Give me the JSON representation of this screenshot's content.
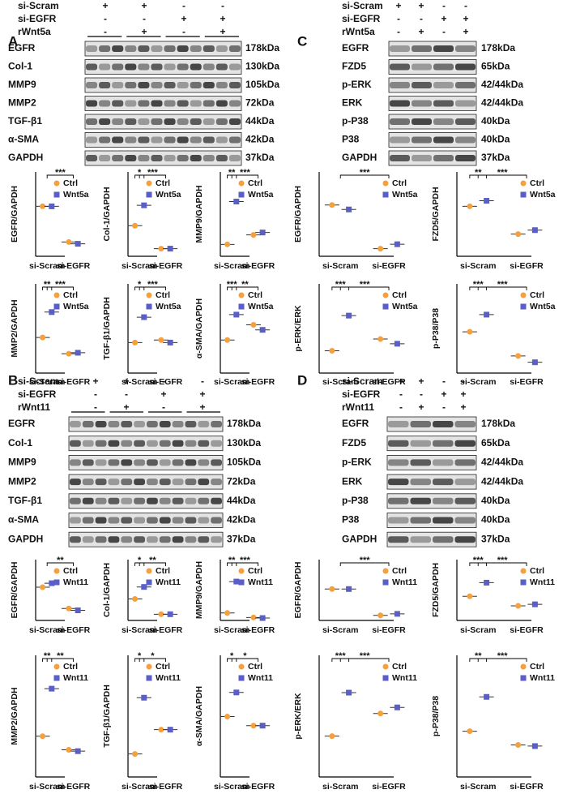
{
  "panels": [
    {
      "label": "A",
      "conditions": [
        {
          "name": "si-Scram",
          "signs": [
            "+",
            "+",
            "-",
            "-"
          ]
        },
        {
          "name": "si-EGFR",
          "signs": [
            "-",
            "-",
            "+",
            "+"
          ]
        },
        {
          "name": "rWnt5a",
          "signs": [
            "-",
            "+",
            "-",
            "+"
          ]
        }
      ],
      "blots": [
        {
          "protein": "EGFR",
          "size": "178kDa"
        },
        {
          "protein": "Col-1",
          "size": "130kDa"
        },
        {
          "protein": "MMP9",
          "size": "105kDa"
        },
        {
          "protein": "MMP2",
          "size": "72kDa"
        },
        {
          "protein": "TGF-β1",
          "size": "44kDa"
        },
        {
          "protein": "α-SMA",
          "size": "42kDa"
        },
        {
          "protein": "GAPDH",
          "size": "37kDa"
        }
      ],
      "plots": [
        {
          "ylabel": "EGFR/GAPDH",
          "categories": [
            "si-Scram",
            "si-EGFR"
          ],
          "ylim": [
            0,
            2
          ],
          "significance": [
            "***"
          ],
          "series": [
            {
              "name": "Ctrl",
              "color": "#f5a03c",
              "values": [
                1.4,
                0.4
              ]
            },
            {
              "name": "Wnt5a",
              "color": "#5a5fc8",
              "values": [
                1.4,
                0.35
              ]
            }
          ]
        },
        {
          "ylabel": "Col-1/GAPDH",
          "categories": [
            "si-Scram",
            "si-EGFR"
          ],
          "ylim": [
            0,
            1.4
          ],
          "significance": [
            "*",
            "***"
          ],
          "series": [
            {
              "name": "Ctrl",
              "color": "#f5a03c",
              "values": [
                0.6,
                0.15
              ]
            },
            {
              "name": "Wnt5a",
              "color": "#5a5fc8",
              "values": [
                1.0,
                0.15
              ]
            }
          ]
        },
        {
          "ylabel": "MMP9/GAPDH",
          "categories": [
            "si-Scram",
            "si-EGFR"
          ],
          "ylim": [
            0,
            1.5
          ],
          "significance": [
            "**",
            "***"
          ],
          "series": [
            {
              "name": "Ctrl",
              "color": "#f5a03c",
              "values": [
                0.25,
                0.45
              ]
            },
            {
              "name": "Wnt5a",
              "color": "#5a5fc8",
              "values": [
                1.15,
                0.5
              ]
            }
          ]
        },
        {
          "ylabel": "MMP2/GAPDH",
          "categories": [
            "si-Scram",
            "si-EGFR"
          ],
          "ylim": [
            0,
            1.5
          ],
          "significance": [
            "**",
            "***"
          ],
          "series": [
            {
              "name": "Ctrl",
              "color": "#f5a03c",
              "values": [
                0.7,
                0.38
              ]
            },
            {
              "name": "Wnt5a",
              "color": "#5a5fc8",
              "values": [
                1.2,
                0.4
              ]
            }
          ]
        },
        {
          "ylabel": "TGF-β1/GAPDH",
          "categories": [
            "si-Scram",
            "si-EGFR"
          ],
          "ylim": [
            0,
            1.5
          ],
          "significance": [
            "*",
            "***"
          ],
          "series": [
            {
              "name": "Ctrl",
              "color": "#f5a03c",
              "values": [
                0.6,
                0.65
              ]
            },
            {
              "name": "Wnt5a",
              "color": "#5a5fc8",
              "values": [
                1.1,
                0.6
              ]
            }
          ]
        },
        {
          "ylabel": "α-SMA/GAPDH",
          "categories": [
            "si-Scram",
            "si-EGFR"
          ],
          "ylim": [
            0,
            1.5
          ],
          "significance": [
            "***",
            "**"
          ],
          "series": [
            {
              "name": "Ctrl",
              "color": "#f5a03c",
              "values": [
                0.65,
                0.95
              ]
            },
            {
              "name": "Wnt5a",
              "color": "#5a5fc8",
              "values": [
                1.15,
                0.85
              ]
            }
          ]
        }
      ]
    },
    {
      "label": "B",
      "conditions": [
        {
          "name": "si-Scram",
          "signs": [
            "+",
            "+",
            "-",
            "-"
          ]
        },
        {
          "name": "si-EGFR",
          "signs": [
            "-",
            "-",
            "+",
            "+"
          ]
        },
        {
          "name": "rWnt11",
          "signs": [
            "-",
            "+",
            "-",
            "+"
          ]
        }
      ],
      "blots": [
        {
          "protein": "EGFR",
          "size": "178kDa"
        },
        {
          "protein": "Col-1",
          "size": "130kDa"
        },
        {
          "protein": "MMP9",
          "size": "105kDa"
        },
        {
          "protein": "MMP2",
          "size": "72kDa"
        },
        {
          "protein": "TGF-β1",
          "size": "44kDa"
        },
        {
          "protein": "α-SMA",
          "size": "42kDa"
        },
        {
          "protein": "GAPDH",
          "size": "37kDa"
        }
      ],
      "plots": [
        {
          "ylabel": "EGFR/GAPDH",
          "categories": [
            "si-Scram",
            "si-EGFR"
          ],
          "ylim": [
            0,
            1.8
          ],
          "significance": [
            "**"
          ],
          "series": [
            {
              "name": "Ctrl",
              "color": "#f5a03c",
              "values": [
                1.25,
                0.45
              ]
            },
            {
              "name": "Wnt11",
              "color": "#5a5fc8",
              "values": [
                1.4,
                0.38
              ]
            }
          ]
        },
        {
          "ylabel": "Col-1/GAPDH",
          "categories": [
            "si-Scram",
            "si-EGFR"
          ],
          "ylim": [
            0,
            1
          ],
          "significance": [
            "*",
            "**"
          ],
          "series": [
            {
              "name": "Ctrl",
              "color": "#f5a03c",
              "values": [
                0.45,
                0.13
              ]
            },
            {
              "name": "Wnt11",
              "color": "#5a5fc8",
              "values": [
                0.7,
                0.13
              ]
            }
          ]
        },
        {
          "ylabel": "MMP9/GAPDH",
          "categories": [
            "si-Scram",
            "si-EGFR"
          ],
          "ylim": [
            0,
            1.6
          ],
          "significance": [
            "**",
            "***"
          ],
          "series": [
            {
              "name": "Ctrl",
              "color": "#f5a03c",
              "values": [
                0.25,
                0.1
              ]
            },
            {
              "name": "Wnt11",
              "color": "#5a5fc8",
              "values": [
                1.3,
                0.08
              ]
            }
          ]
        },
        {
          "ylabel": "MMP2/GAPDH",
          "categories": [
            "si-Scram",
            "si-EGFR"
          ],
          "ylim": [
            0,
            1.6
          ],
          "significance": [
            "**",
            "**"
          ],
          "series": [
            {
              "name": "Ctrl",
              "color": "#f5a03c",
              "values": [
                0.6,
                0.4
              ]
            },
            {
              "name": "Wnt11",
              "color": "#5a5fc8",
              "values": [
                1.3,
                0.38
              ]
            }
          ]
        },
        {
          "ylabel": "TGF-β1/GAPDH",
          "categories": [
            "si-Scram",
            "si-EGFR"
          ],
          "ylim": [
            0,
            0.85
          ],
          "significance": [
            "*",
            "*"
          ],
          "series": [
            {
              "name": "Ctrl",
              "color": "#f5a03c",
              "values": [
                0.18,
                0.37
              ]
            },
            {
              "name": "Wnt11",
              "color": "#5a5fc8",
              "values": [
                0.62,
                0.37
              ]
            }
          ]
        },
        {
          "ylabel": "α-SMA/GAPDH",
          "categories": [
            "si-Scram",
            "si-EGFR"
          ],
          "ylim": [
            0,
            1.8
          ],
          "significance": [
            "*",
            "*"
          ],
          "series": [
            {
              "name": "Ctrl",
              "color": "#f5a03c",
              "values": [
                1.0,
                0.85
              ]
            },
            {
              "name": "Wnt11",
              "color": "#5a5fc8",
              "values": [
                1.4,
                0.85
              ]
            }
          ]
        }
      ]
    },
    {
      "label": "C",
      "conditions": [
        {
          "name": "si-Scram",
          "signs": [
            "+",
            "+",
            "-",
            "-"
          ]
        },
        {
          "name": "si-EGFR",
          "signs": [
            "-",
            "-",
            "+",
            "+"
          ]
        },
        {
          "name": "rWnt5a",
          "signs": [
            "-",
            "+",
            "-",
            "+"
          ]
        }
      ],
      "blots": [
        {
          "protein": "EGFR",
          "size": "178kDa"
        },
        {
          "protein": "FZD5",
          "size": "65kDa"
        },
        {
          "protein": "p-ERK",
          "size": "42/44kDa"
        },
        {
          "protein": "ERK",
          "size": "42/44kDa"
        },
        {
          "protein": "p-P38",
          "size": "40kDa"
        },
        {
          "protein": "P38",
          "size": "40kDa"
        },
        {
          "protein": "GAPDH",
          "size": "37kDa"
        }
      ],
      "plots": [
        {
          "ylabel": "EGFR/GAPDH",
          "categories": [
            "si-Scram",
            "si-EGFR"
          ],
          "ylim": [
            0,
            1.6
          ],
          "significance": [
            "***"
          ],
          "series": [
            {
              "name": "Ctrl",
              "color": "#f5a03c",
              "values": [
                1.15,
                0.17
              ]
            },
            {
              "name": "Wnt5a",
              "color": "#5a5fc8",
              "values": [
                1.05,
                0.27
              ]
            }
          ]
        },
        {
          "ylabel": "FZD5/GAPDH",
          "categories": [
            "si-Scram",
            "si-EGFR"
          ],
          "ylim": [
            0,
            0.9
          ],
          "significance": [
            "**",
            "***"
          ],
          "series": [
            {
              "name": "Ctrl",
              "color": "#f5a03c",
              "values": [
                0.63,
                0.28
              ]
            },
            {
              "name": "Wnt5a",
              "color": "#5a5fc8",
              "values": [
                0.7,
                0.33
              ]
            }
          ]
        },
        {
          "ylabel": "p-ERK/ERK",
          "categories": [
            "si-Scram",
            "si-EGFR"
          ],
          "ylim": [
            0,
            1.3
          ],
          "significance": [
            "***",
            "***"
          ],
          "series": [
            {
              "name": "Ctrl",
              "color": "#f5a03c",
              "values": [
                0.38,
                0.58
              ]
            },
            {
              "name": "Wnt5a",
              "color": "#5a5fc8",
              "values": [
                0.98,
                0.5
              ]
            }
          ]
        },
        {
          "ylabel": "p-P38/P38",
          "categories": [
            "si-Scram",
            "si-EGFR"
          ],
          "ylim": [
            0,
            1.2
          ],
          "significance": [
            "***",
            "***"
          ],
          "series": [
            {
              "name": "Ctrl",
              "color": "#f5a03c",
              "values": [
                0.65,
                0.27
              ]
            },
            {
              "name": "Wnt5a",
              "color": "#5a5fc8",
              "values": [
                0.92,
                0.17
              ]
            }
          ]
        }
      ]
    },
    {
      "label": "D",
      "conditions": [
        {
          "name": "si-Scram",
          "signs": [
            "+",
            "+",
            "-",
            "-"
          ]
        },
        {
          "name": "si-EGFR",
          "signs": [
            "-",
            "-",
            "+",
            "+"
          ]
        },
        {
          "name": "rWnt11",
          "signs": [
            "-",
            "+",
            "-",
            "+"
          ]
        }
      ],
      "blots": [
        {
          "protein": "EGFR",
          "size": "178kDa"
        },
        {
          "protein": "FZD5",
          "size": "65kDa"
        },
        {
          "protein": "p-ERK",
          "size": "42/44kDa"
        },
        {
          "protein": "ERK",
          "size": "42/44kDa"
        },
        {
          "protein": "p-P38",
          "size": "40kDa"
        },
        {
          "protein": "P38",
          "size": "40kDa"
        },
        {
          "protein": "GAPDH",
          "size": "37kDa"
        }
      ],
      "plots": [
        {
          "ylabel": "EGFR/GAPDH",
          "categories": [
            "si-Scram",
            "si-EGFR"
          ],
          "ylim": [
            0,
            1.6
          ],
          "significance": [
            "***"
          ],
          "series": [
            {
              "name": "Ctrl",
              "color": "#f5a03c",
              "values": [
                1.05,
                0.17
              ]
            },
            {
              "name": "Wnt11",
              "color": "#5a5fc8",
              "values": [
                1.05,
                0.22
              ]
            }
          ]
        },
        {
          "ylabel": "FZD5/GAPDH",
          "categories": [
            "si-Scram",
            "si-EGFR"
          ],
          "ylim": [
            0,
            0.95
          ],
          "significance": [
            "***",
            "***"
          ],
          "series": [
            {
              "name": "Ctrl",
              "color": "#f5a03c",
              "values": [
                0.48,
                0.29
              ]
            },
            {
              "name": "Wnt11",
              "color": "#5a5fc8",
              "values": [
                0.75,
                0.32
              ]
            }
          ]
        },
        {
          "ylabel": "p-ERK/ERK",
          "categories": [
            "si-Scram",
            "si-EGFR"
          ],
          "ylim": [
            0,
            1.25
          ],
          "significance": [
            "***",
            "***"
          ],
          "series": [
            {
              "name": "Ctrl",
              "color": "#f5a03c",
              "values": [
                0.47,
                0.73
              ]
            },
            {
              "name": "Wnt11",
              "color": "#5a5fc8",
              "values": [
                0.97,
                0.8
              ]
            }
          ]
        },
        {
          "ylabel": "p-P38/P38",
          "categories": [
            "si-Scram",
            "si-EGFR"
          ],
          "ylim": [
            0,
            0.95
          ],
          "significance": [
            "**",
            "***"
          ],
          "series": [
            {
              "name": "Ctrl",
              "color": "#f5a03c",
              "values": [
                0.4,
                0.28
              ]
            },
            {
              "name": "Wnt11",
              "color": "#5a5fc8",
              "values": [
                0.7,
                0.27
              ]
            }
          ]
        }
      ]
    }
  ]
}
